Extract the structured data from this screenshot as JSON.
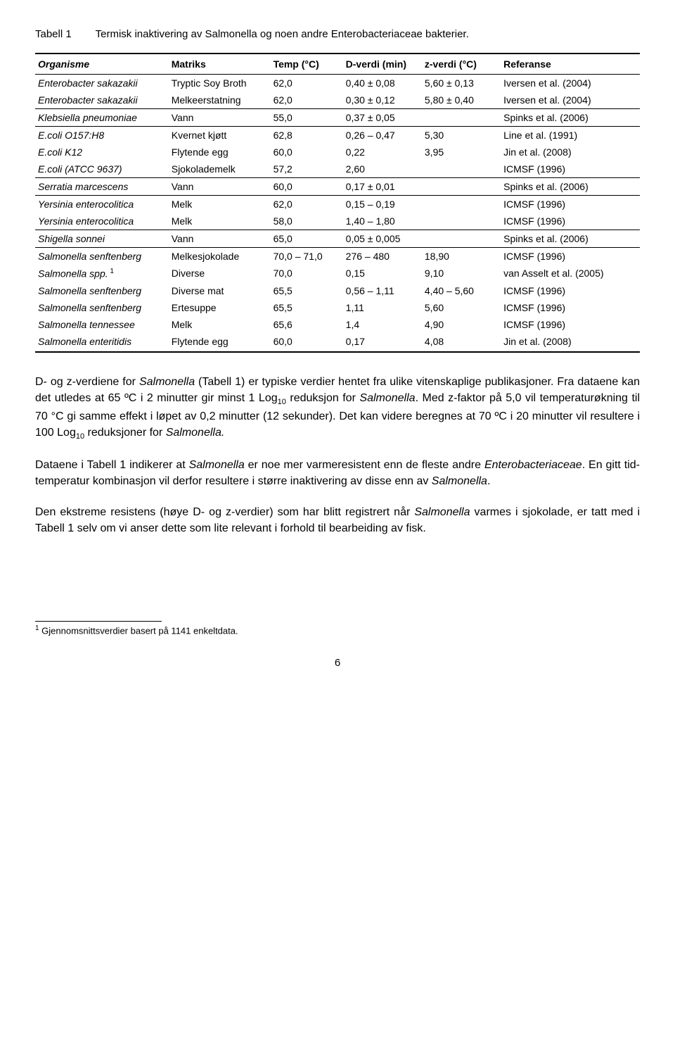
{
  "title": {
    "label": "Tabell 1",
    "text": "Termisk inaktivering av Salmonella og noen andre Enterobacteriaceae bakterier."
  },
  "headers": {
    "org": "Organisme",
    "mat": "Matriks",
    "temp": "Temp (°C)",
    "d": "D-verdi (min)",
    "z": "z-verdi (°C)",
    "ref": "Referanse"
  },
  "rows": [
    {
      "org": "Enterobacter sakazakii",
      "mat": "Tryptic Soy Broth",
      "temp": "62,0",
      "d": "0,40 ± 0,08",
      "z": "5,60 ± 0,13",
      "ref": "Iversen et al. (2004)",
      "sep": false
    },
    {
      "org": "Enterobacter sakazakii",
      "mat": "Melkeerstatning",
      "temp": "62,0",
      "d": "0,30 ± 0,12",
      "z": "5,80 ± 0,40",
      "ref": "Iversen et al. (2004)",
      "sep": true
    },
    {
      "org": "Klebsiella pneumoniae",
      "mat": "Vann",
      "temp": "55,0",
      "d": "0,37 ± 0,05",
      "z": "",
      "ref": "Spinks et al. (2006)",
      "sep": true
    },
    {
      "org": "E.coli O157:H8",
      "mat": "Kvernet kjøtt",
      "temp": "62,8",
      "d": "0,26 – 0,47",
      "z": "5,30",
      "ref": "Line et al. (1991)",
      "sep": false
    },
    {
      "org": "E.coli K12",
      "mat": "Flytende egg",
      "temp": "60,0",
      "d": "0,22",
      "z": "3,95",
      "ref": "Jin et al. (2008)",
      "sep": false
    },
    {
      "org": "E.coli (ATCC 9637)",
      "mat": "Sjokolademelk",
      "temp": "57,2",
      "d": "2,60",
      "z": "",
      "ref": "ICMSF (1996)",
      "sep": true
    },
    {
      "org": "Serratia marcescens",
      "mat": "Vann",
      "temp": "60,0",
      "d": "0,17 ± 0,01",
      "z": "",
      "ref": "Spinks et al. (2006)",
      "sep": true
    },
    {
      "org": "Yersinia enterocolitica",
      "mat": "Melk",
      "temp": "62,0",
      "d": "0,15 – 0,19",
      "z": "",
      "ref": "ICMSF (1996)",
      "sep": false
    },
    {
      "org": "Yersinia enterocolitica",
      "mat": "Melk",
      "temp": "58,0",
      "d": "1,40 – 1,80",
      "z": "",
      "ref": "ICMSF (1996)",
      "sep": true
    },
    {
      "org": "Shigella sonnei",
      "mat": "Vann",
      "temp": "65,0",
      "d": "0,05 ± 0,005",
      "z": "",
      "ref": "Spinks et al. (2006)",
      "sep": true
    },
    {
      "org": "Salmonella senftenberg",
      "mat": "Melkesjokolade",
      "temp": "70,0 – 71,0",
      "d": "276 – 480",
      "z": "18,90",
      "ref": "ICMSF (1996)",
      "sep": false
    },
    {
      "org": "Salmonella spp.",
      "sup": "1",
      "mat": "Diverse",
      "temp": "70,0",
      "d": "0,15",
      "z": "9,10",
      "ref": "van Asselt et al. (2005)",
      "sep": false
    },
    {
      "org": "Salmonella senftenberg",
      "mat": "Diverse mat",
      "temp": "65,5",
      "d": "0,56 – 1,11",
      "z": "4,40 – 5,60",
      "ref": "ICMSF (1996)",
      "sep": false
    },
    {
      "org": "Salmonella senftenberg",
      "mat": "Ertesuppe",
      "temp": "65,5",
      "d": "1,11",
      "z": "5,60",
      "ref": "ICMSF (1996)",
      "sep": false
    },
    {
      "org": "Salmonella tennessee",
      "mat": "Melk",
      "temp": "65,6",
      "d": "1,4",
      "z": "4,90",
      "ref": "ICMSF (1996)",
      "sep": false
    },
    {
      "org": "Salmonella enteritidis",
      "mat": "Flytende egg",
      "temp": "60,0",
      "d": "0,17",
      "z": "4,08",
      "ref": "Jin et al. (2008)",
      "sep": false,
      "last": true
    }
  ],
  "paras": {
    "p1a": "D- og z-verdiene for ",
    "p1i1": "Salmonella",
    "p1b": " (Tabell 1) er typiske verdier hentet fra ulike vitenskaplige publikasjoner. Fra dataene kan det utledes at 65 ºC i 2 minutter gir minst 1 Log",
    "p1c": " reduksjon for ",
    "p1i2": "Salmonella",
    "p1d": ". Med z-faktor på 5,0 vil temperaturøkning til 70 °C gi samme effekt i løpet av 0,2 minutter (12 sekunder). Det kan videre beregnes at 70 ºC i 20 minutter vil resultere i 100 Log",
    "p1e": " reduksjoner for ",
    "p1i3": "Salmonella.",
    "p2a": "Dataene i Tabell 1 indikerer at ",
    "p2i1": "Salmonella",
    "p2b": " er noe mer varmeresistent enn de fleste andre ",
    "p2i2": "Enterobacteriaceae",
    "p2c": ". En gitt tid-temperatur kombinasjon vil derfor resultere i større inaktivering av disse enn av ",
    "p2i3": "Salmonella",
    "p2d": ".",
    "p3a": "Den ekstreme resistens (høye D- og z-verdier) som har blitt registrert når ",
    "p3i1": "Salmonella",
    "p3b": " varmes i sjokolade, er tatt med i Tabell 1 selv om vi anser dette som lite relevant i forhold til bearbeiding av fisk."
  },
  "footnote": {
    "marker": "1",
    "text": " Gjennomsnittsverdier basert på 1141 enkeltdata."
  },
  "pagenum": "6",
  "sub10": "10"
}
